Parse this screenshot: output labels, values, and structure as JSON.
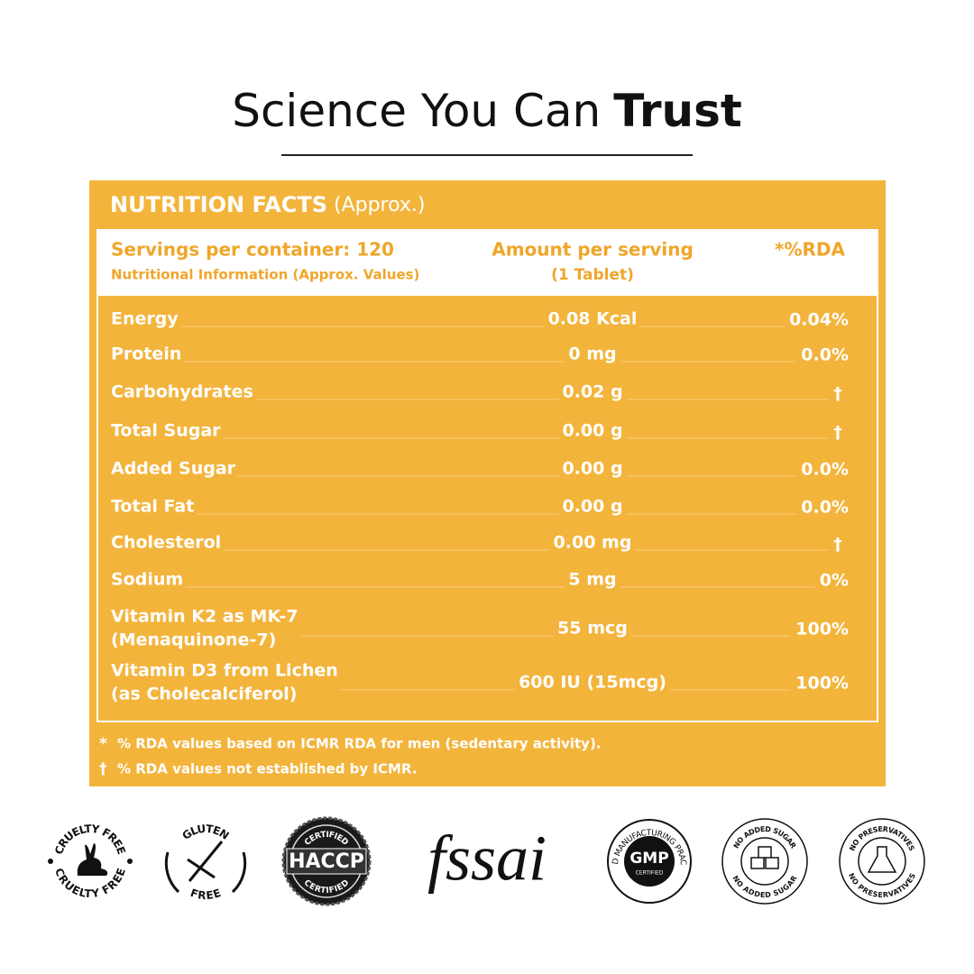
{
  "header": {
    "title_regular": "Science You Can",
    "title_bold": "Trust"
  },
  "panel": {
    "title": "NUTRITION FACTS",
    "title_note": "(Approx.)",
    "servings": "Servings per container: 120",
    "servings_note": "Nutritional Information (Approx. Values)",
    "amount_header": "Amount per serving",
    "amount_note": "(1 Tablet)",
    "rda_header": "*%RDA",
    "rows": [
      {
        "name": [
          "Energy"
        ],
        "amount": "0.08 Kcal",
        "rda": "0.04%"
      },
      {
        "name": [
          "Protein"
        ],
        "amount": "0 mg",
        "rda": "0.0%"
      },
      {
        "name": [
          "Carbohydrates"
        ],
        "amount": "0.02 g",
        "rda": "†"
      },
      {
        "name": [
          "Total Sugar"
        ],
        "amount": "0.00 g",
        "rda": "†"
      },
      {
        "name": [
          "Added Sugar"
        ],
        "amount": "0.00 g",
        "rda": "0.0%"
      },
      {
        "name": [
          "Total Fat"
        ],
        "amount": "0.00 g",
        "rda": "0.0%"
      },
      {
        "name": [
          "Cholesterol"
        ],
        "amount": "0.00 mg",
        "rda": "†"
      },
      {
        "name": [
          "Sodium"
        ],
        "amount": "5 mg",
        "rda": "0%"
      },
      {
        "name": [
          "Vitamin K2 as MK-7",
          "(Menaquinone-7)"
        ],
        "amount": "55 mcg",
        "rda": "100%"
      },
      {
        "name": [
          "Vitamin D3 from Lichen",
          "(as Cholecalciferol)"
        ],
        "amount": "600 IU (15mcg)",
        "rda": "100%"
      }
    ],
    "footnotes": [
      {
        "symbol": "*",
        "text": "% RDA values based on ICMR RDA for men (sedentary activity)."
      },
      {
        "symbol": "†",
        "text": "% RDA values not established by ICMR."
      }
    ]
  },
  "badges": [
    {
      "top": "CRUELTY FREE",
      "bottom": "CRUELTY FREE"
    },
    {
      "top": "GLUTEN",
      "bottom": "FREE"
    },
    {
      "top": "CERTIFIED",
      "center": "HACCP",
      "bottom": "CERTIFIED"
    },
    {
      "center": "fssai"
    },
    {
      "ring": "GOOD MANUFACTURING PRACTICE",
      "center": "GMP",
      "sub": "CERTIFIED"
    },
    {
      "top": "NO ADDED SUGAR",
      "bottom": "NO ADDED SUGAR"
    },
    {
      "top": "NO PRESERVATIVES",
      "bottom": "NO PRESERVATIVES"
    }
  ]
}
